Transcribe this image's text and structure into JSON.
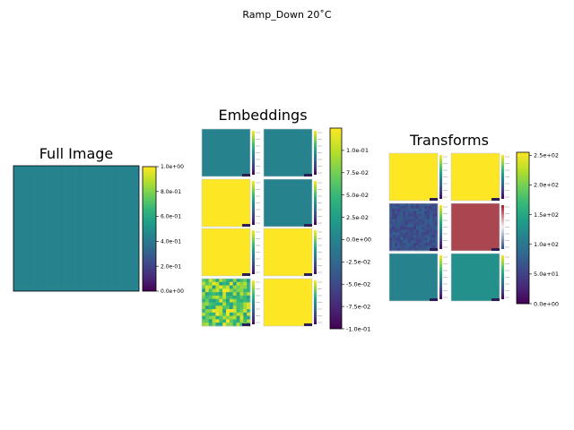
{
  "figure": {
    "suptitle": "Ramp_Down 20˚C"
  },
  "colors": {
    "viridis": [
      "#440154",
      "#482878",
      "#3e4989",
      "#31688e",
      "#26828e",
      "#1f9e89",
      "#35b779",
      "#6ece58",
      "#b5de2b",
      "#fde725"
    ],
    "transform_red": "#a94650",
    "transform_navy": "#33508a",
    "image_teal": "#21918c"
  },
  "chart_data": [
    {
      "type": "heatmap",
      "title": "Full Image",
      "cmap": "viridis",
      "fill_value": 0.45,
      "value_range": [
        0,
        1
      ],
      "colorbar": {
        "ticks": [
          0,
          0.2,
          0.4,
          0.6,
          0.8,
          1.0
        ],
        "tick_labels": [
          "0.0e+00",
          "2.0e-01",
          "4.0e-01",
          "6.0e-01",
          "8.0e-01",
          "1.0e+00"
        ]
      }
    },
    {
      "type": "heatmap",
      "title": "Embeddings",
      "cmap": "viridis",
      "grid": [
        4,
        2
      ],
      "panels": [
        {
          "fill_value": 0.45,
          "pattern": "uniform"
        },
        {
          "fill_value": 0.45,
          "pattern": "uniform"
        },
        {
          "fill_value": 1.0,
          "pattern": "uniform"
        },
        {
          "fill_value": 0.45,
          "pattern": "uniform"
        },
        {
          "fill_value": 1.0,
          "pattern": "uniform"
        },
        {
          "fill_value": 1.0,
          "pattern": "uniform"
        },
        {
          "fill_value": 0.85,
          "pattern": "mottled"
        },
        {
          "fill_value": 1.0,
          "pattern": "uniform"
        }
      ],
      "value_range": [
        -0.1,
        0.125
      ],
      "colorbar": {
        "ticks": [
          -0.1,
          -0.075,
          -0.05,
          -0.025,
          0,
          0.025,
          0.05,
          0.075,
          0.1
        ],
        "tick_labels": [
          "-1.0e-01",
          "-7.5e-02",
          "-5.0e-02",
          "-2.5e-02",
          "0.0e+00",
          "2.5e-02",
          "5.0e-02",
          "7.5e-02",
          "1.0e-01"
        ]
      }
    },
    {
      "type": "heatmap",
      "title": "Transforms",
      "cmap": "viridis",
      "grid": [
        3,
        2
      ],
      "panels": [
        {
          "fill_value": 1.0,
          "pattern": "uniform",
          "mini_cmap": "viridis"
        },
        {
          "fill_value": 1.0,
          "pattern": "uniform",
          "mini_cmap": "viridis"
        },
        {
          "fill_value": 0.25,
          "pattern": "noisy",
          "mini_cmap": "viridis"
        },
        {
          "fill_value": 0.5,
          "pattern": "red",
          "mini_cmap": "diverging"
        },
        {
          "fill_value": 0.45,
          "pattern": "uniform",
          "mini_cmap": "viridis"
        },
        {
          "fill_value": 0.5,
          "pattern": "uniform",
          "mini_cmap": "viridis"
        }
      ],
      "value_range": [
        0,
        255
      ],
      "colorbar": {
        "ticks": [
          0,
          50,
          100,
          150,
          200,
          250
        ],
        "tick_labels": [
          "0.0e+00",
          "5.0e+01",
          "1.0e+02",
          "1.5e+02",
          "2.0e+02",
          "2.5e+02"
        ]
      }
    }
  ]
}
